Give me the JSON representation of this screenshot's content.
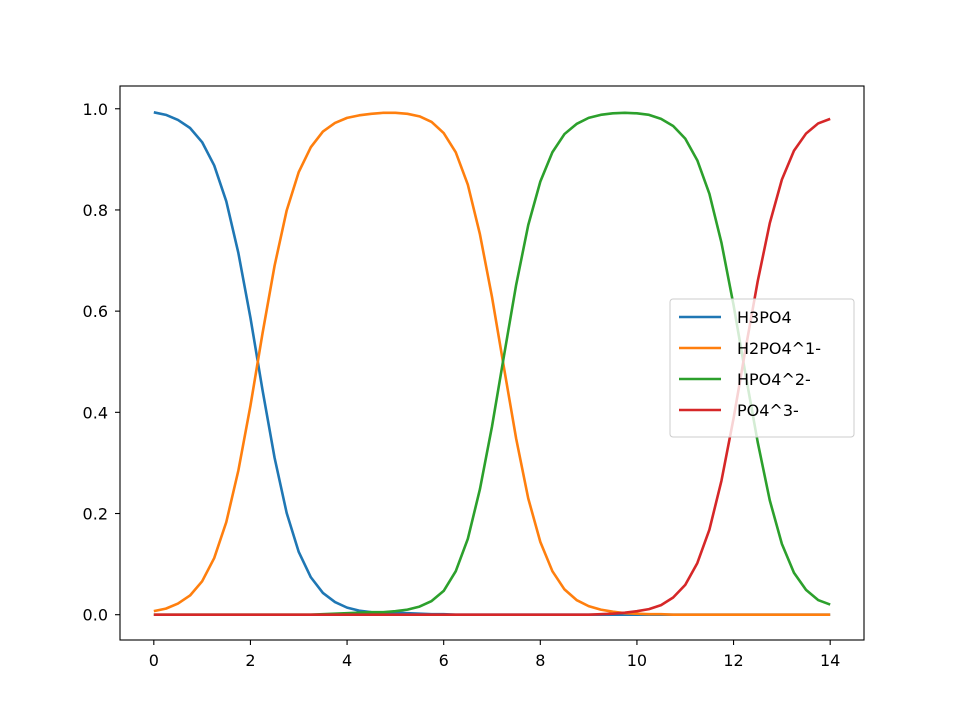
{
  "chart_data": {
    "type": "line",
    "title": "",
    "xlabel": "",
    "ylabel": "",
    "xlim": [
      -0.7,
      14.7
    ],
    "ylim": [
      -0.05,
      1.045
    ],
    "xticks": [
      0,
      2,
      4,
      6,
      8,
      10,
      12,
      14
    ],
    "xtick_labels": [
      "0",
      "2",
      "4",
      "6",
      "8",
      "10",
      "12",
      "14"
    ],
    "yticks": [
      0.0,
      0.2,
      0.4,
      0.6,
      0.8,
      1.0
    ],
    "ytick_labels": [
      "0.0",
      "0.2",
      "0.4",
      "0.6",
      "0.8",
      "1.0"
    ],
    "grid": false,
    "legend_position": "center-right",
    "x": [
      0,
      0.25,
      0.5,
      0.75,
      1,
      1.25,
      1.5,
      1.75,
      2,
      2.25,
      2.5,
      2.75,
      3,
      3.25,
      3.5,
      3.75,
      4,
      4.25,
      4.5,
      4.75,
      5,
      5.25,
      5.5,
      5.75,
      6,
      6.25,
      6.5,
      6.75,
      7,
      7.25,
      7.5,
      7.75,
      8,
      8.25,
      8.5,
      8.75,
      9,
      9.25,
      9.5,
      9.75,
      10,
      10.25,
      10.5,
      10.75,
      11,
      11.25,
      11.5,
      11.75,
      12,
      12.25,
      12.5,
      12.75,
      13,
      13.25,
      13.5,
      13.75,
      14
    ],
    "series": [
      {
        "name": "H3PO4",
        "color": "#1f77b4",
        "values": [
          0.993,
          0.988,
          0.978,
          0.962,
          0.934,
          0.888,
          0.817,
          0.715,
          0.587,
          0.444,
          0.31,
          0.201,
          0.124,
          0.074,
          0.043,
          0.025,
          0.014,
          0.008,
          0.005,
          0.004,
          0.004,
          0.003,
          0.002,
          0.001,
          0.001,
          0.0,
          0.0,
          0.0,
          0.0,
          0.0,
          0.0,
          0.0,
          0.0,
          0.0,
          0.0,
          0.0,
          0.0,
          0.0,
          0.0,
          0.0,
          0.0,
          0.0,
          0.0,
          0.0,
          0.0,
          0.0,
          0.0,
          0.0,
          0.0,
          0.0,
          0.0,
          0.0,
          0.0,
          0.0,
          0.0,
          0.0,
          0.0
        ]
      },
      {
        "name": "H2PO4^1-",
        "color": "#ff7f0e",
        "values": [
          0.007,
          0.012,
          0.022,
          0.038,
          0.066,
          0.112,
          0.183,
          0.285,
          0.413,
          0.556,
          0.69,
          0.799,
          0.875,
          0.924,
          0.955,
          0.972,
          0.982,
          0.987,
          0.99,
          0.992,
          0.992,
          0.99,
          0.985,
          0.974,
          0.952,
          0.914,
          0.85,
          0.752,
          0.628,
          0.487,
          0.348,
          0.23,
          0.144,
          0.086,
          0.05,
          0.029,
          0.017,
          0.01,
          0.006,
          0.003,
          0.002,
          0.001,
          0.001,
          0.0,
          0.0,
          0.0,
          0.0,
          0.0,
          0.0,
          0.0,
          0.0,
          0.0,
          0.0,
          0.0,
          0.0,
          0.0,
          0.0
        ]
      },
      {
        "name": "HPO4^2-",
        "color": "#2ca02c",
        "values": [
          0.0,
          0.0,
          0.0,
          0.0,
          0.0,
          0.0,
          0.0,
          0.0,
          0.0,
          0.0,
          0.0,
          0.0,
          0.0,
          0.0,
          0.001,
          0.002,
          0.003,
          0.004,
          0.005,
          0.005,
          0.007,
          0.01,
          0.016,
          0.027,
          0.047,
          0.086,
          0.15,
          0.248,
          0.372,
          0.513,
          0.652,
          0.77,
          0.856,
          0.914,
          0.95,
          0.97,
          0.982,
          0.988,
          0.991,
          0.992,
          0.991,
          0.988,
          0.98,
          0.966,
          0.941,
          0.898,
          0.832,
          0.735,
          0.612,
          0.474,
          0.341,
          0.226,
          0.14,
          0.083,
          0.049,
          0.029,
          0.02
        ]
      },
      {
        "name": "PO4^3-",
        "color": "#d62728",
        "values": [
          0.0,
          0.0,
          0.0,
          0.0,
          0.0,
          0.0,
          0.0,
          0.0,
          0.0,
          0.0,
          0.0,
          0.0,
          0.0,
          0.0,
          0.0,
          0.0,
          0.0,
          0.0,
          0.0,
          0.0,
          0.0,
          0.0,
          0.0,
          0.0,
          0.0,
          0.0,
          0.0,
          0.0,
          0.0,
          0.0,
          0.0,
          0.0,
          0.0,
          0.0,
          0.0,
          0.0,
          0.0,
          0.001,
          0.002,
          0.004,
          0.007,
          0.011,
          0.019,
          0.034,
          0.059,
          0.102,
          0.168,
          0.265,
          0.388,
          0.526,
          0.659,
          0.774,
          0.86,
          0.917,
          0.951,
          0.971,
          0.98
        ]
      }
    ]
  }
}
